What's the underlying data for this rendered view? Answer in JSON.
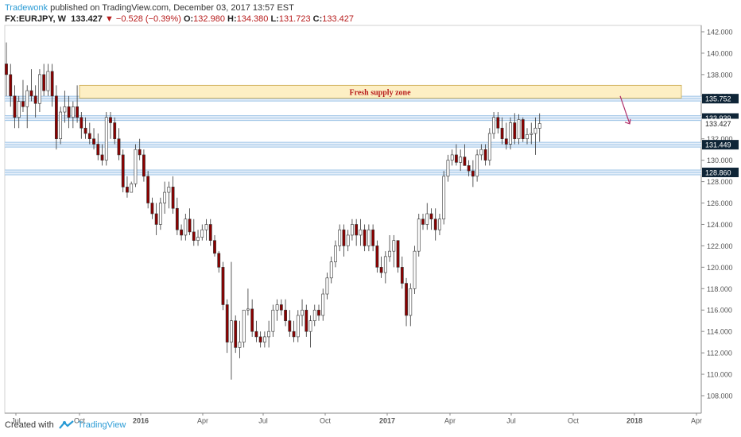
{
  "header": {
    "author": "Tradewonk",
    "published_text": "published on TradingView.com, December 03, 2017 13:57 EST",
    "symbol": "FX:EURJPY, W",
    "last": "133.427",
    "change": "−0.528 (−0.39%)",
    "open_label": "O:",
    "open": "132.980",
    "high_label": "H:",
    "high": "134.380",
    "low_label": "L:",
    "low": "131.723",
    "close_label": "C:",
    "close": "133.427"
  },
  "footer": {
    "created_with": "Created with",
    "brand": "TradingView"
  },
  "colors": {
    "up_fill": "#ffffff",
    "down_fill": "#8b0000",
    "candle_border": "#333333",
    "level_line": "#9cc3e6",
    "zone_fill": "#fdefc4",
    "zone_text": "#b71c1c",
    "label_bg": "#0f2537",
    "arrow": "#b0306a"
  },
  "chart_data": {
    "type": "candlestick",
    "title": "FX:EURJPY, W",
    "ylim": [
      107,
      143
    ],
    "y_ticks": [
      "142.000",
      "140.000",
      "138.000",
      "136.000",
      "134.000",
      "132.000",
      "130.000",
      "128.000",
      "126.000",
      "124.000",
      "122.000",
      "120.000",
      "118.000",
      "116.000",
      "114.000",
      "112.000",
      "110.000",
      "108.000"
    ],
    "x_ticks": [
      "Jul",
      "Oct",
      "2016",
      "Apr",
      "Jul",
      "Oct",
      "2017",
      "Apr",
      "Jul",
      "Oct",
      "2018",
      "Apr"
    ],
    "levels": [
      {
        "value": 135.752,
        "label": "135.752"
      },
      {
        "value": 133.939,
        "label": "133.939"
      },
      {
        "value": 131.449,
        "label": "131.449"
      },
      {
        "value": 128.86,
        "label": "128.860"
      }
    ],
    "current_price": "133.427",
    "zone": {
      "label": "Fresh supply zone",
      "low": 135.8,
      "high": 137.0
    },
    "candles": [
      [
        139,
        141,
        136,
        138
      ],
      [
        138,
        139,
        135,
        136
      ],
      [
        136,
        137,
        133,
        134
      ],
      [
        134,
        136,
        133,
        135.5
      ],
      [
        135.5,
        137.5,
        134.5,
        135
      ],
      [
        135,
        137,
        133,
        136.5
      ],
      [
        136.5,
        138.5,
        135.5,
        136
      ],
      [
        136,
        137,
        134,
        135.3
      ],
      [
        135.3,
        138.5,
        134.5,
        138
      ],
      [
        138,
        139,
        136,
        136.5
      ],
      [
        136.5,
        139,
        136,
        138.3
      ],
      [
        138.3,
        139,
        135,
        136
      ],
      [
        136,
        137,
        131,
        132
      ],
      [
        132,
        135,
        131.5,
        134.5
      ],
      [
        134.5,
        136.5,
        133.5,
        135
      ],
      [
        135,
        136,
        133,
        134
      ],
      [
        134,
        135.5,
        133,
        135
      ],
      [
        135,
        137,
        133.5,
        134
      ],
      [
        134,
        134.5,
        132,
        133
      ],
      [
        133,
        134,
        132,
        132.5
      ],
      [
        132.5,
        133.5,
        131.5,
        132
      ],
      [
        132,
        133,
        131,
        131.5
      ],
      [
        131.5,
        132.5,
        130,
        130.5
      ],
      [
        130.5,
        131.5,
        129.5,
        130
      ],
      [
        130,
        134.5,
        129.5,
        134
      ],
      [
        134,
        134.5,
        132,
        133.5
      ],
      [
        133.5,
        134,
        131.5,
        132
      ],
      [
        132,
        133,
        130,
        130.5
      ],
      [
        130.5,
        131,
        127,
        127.5
      ],
      [
        127.5,
        128.5,
        126.5,
        127
      ],
      [
        127,
        128,
        127,
        127.8
      ],
      [
        127.8,
        131.5,
        127.5,
        131
      ],
      [
        131,
        132,
        130,
        130.5
      ],
      [
        130.5,
        131,
        128,
        128.5
      ],
      [
        128.5,
        129,
        125.5,
        126
      ],
      [
        126,
        126.5,
        124.5,
        125
      ],
      [
        125,
        126,
        123,
        124
      ],
      [
        124,
        126.5,
        123.5,
        126
      ],
      [
        126,
        128,
        125,
        127
      ],
      [
        127,
        128,
        125.5,
        127.5
      ],
      [
        127.5,
        128.5,
        125,
        125.5
      ],
      [
        125.5,
        126.5,
        123,
        123.5
      ],
      [
        123.5,
        124,
        122.5,
        123
      ],
      [
        123,
        125,
        122.5,
        124.5
      ],
      [
        124.5,
        125.5,
        123,
        123.3
      ],
      [
        123.3,
        124.5,
        122,
        122.5
      ],
      [
        122.5,
        123.5,
        122,
        122.8
      ],
      [
        122.8,
        124,
        122.5,
        123.5
      ],
      [
        123.5,
        124.5,
        122.5,
        124
      ],
      [
        124,
        124.5,
        122,
        122.5
      ],
      [
        122.5,
        123,
        121,
        121.3
      ],
      [
        121.3,
        121.5,
        119.5,
        120
      ],
      [
        120,
        120.5,
        116,
        116.5
      ],
      [
        116.5,
        117,
        112,
        113
      ],
      [
        113,
        120.5,
        109.5,
        115
      ],
      [
        115,
        115.5,
        112,
        112.5
      ],
      [
        112.5,
        115,
        111.5,
        113
      ],
      [
        113,
        116,
        112.5,
        116
      ],
      [
        116,
        118,
        115.5,
        116.1
      ],
      [
        116.1,
        117,
        113.5,
        114
      ],
      [
        114,
        115,
        113,
        113.5
      ],
      [
        113.5,
        114,
        112.5,
        113
      ],
      [
        113,
        114,
        112.5,
        113.5
      ],
      [
        113.5,
        115,
        112.5,
        114
      ],
      [
        114,
        116.5,
        113.5,
        116
      ],
      [
        116,
        117,
        115,
        116.5
      ],
      [
        116.5,
        117,
        115.5,
        116
      ],
      [
        116,
        117,
        114.5,
        115
      ],
      [
        115,
        116,
        113.5,
        114
      ],
      [
        114,
        115,
        113,
        113.5
      ],
      [
        113.5,
        116,
        113,
        115.5
      ],
      [
        115.5,
        117,
        114.5,
        116
      ],
      [
        116,
        116.5,
        113.5,
        114
      ],
      [
        114,
        115.5,
        112.5,
        115
      ],
      [
        115,
        116.5,
        114.5,
        116
      ],
      [
        116,
        116.5,
        115,
        115.5
      ],
      [
        115.5,
        118,
        115,
        117.5
      ],
      [
        117.5,
        119.5,
        117,
        119
      ],
      [
        119,
        121,
        118.5,
        120.5
      ],
      [
        120.5,
        122.5,
        120,
        122
      ],
      [
        122,
        124,
        121.5,
        123.5
      ],
      [
        123.5,
        124,
        121,
        122
      ],
      [
        122,
        123.5,
        121.5,
        123
      ],
      [
        123,
        124.5,
        122.5,
        124
      ],
      [
        124,
        124.5,
        122,
        123
      ],
      [
        123,
        124.5,
        122,
        123.5
      ],
      [
        123.5,
        124,
        121.5,
        122
      ],
      [
        122,
        124,
        121.5,
        123.5
      ],
      [
        123.5,
        124,
        121.5,
        122
      ],
      [
        122,
        122.5,
        119.5,
        120
      ],
      [
        120,
        121,
        119,
        119.5
      ],
      [
        119.5,
        121.5,
        118.5,
        121
      ],
      [
        121,
        123,
        120.5,
        121.5
      ],
      [
        121.5,
        123,
        120,
        122.5
      ],
      [
        122.5,
        122.5,
        119.5,
        120
      ],
      [
        120,
        121,
        118,
        118.5
      ],
      [
        118.5,
        119,
        114.5,
        115.5
      ],
      [
        115.5,
        118.5,
        114.5,
        118
      ],
      [
        118,
        122,
        117.5,
        121.5
      ],
      [
        121.5,
        125,
        121,
        124.5
      ],
      [
        124.5,
        125,
        123.5,
        124
      ],
      [
        124,
        126,
        123.5,
        125
      ],
      [
        125,
        125.5,
        123.5,
        124.5
      ],
      [
        124.5,
        125.5,
        122.5,
        123.5
      ],
      [
        123.5,
        125,
        123,
        124.5
      ],
      [
        124.5,
        129,
        124,
        128.5
      ],
      [
        128.5,
        130.5,
        128,
        130
      ],
      [
        130,
        131,
        129.5,
        130.5
      ],
      [
        130.5,
        131.5,
        129.5,
        129.8
      ],
      [
        129.8,
        131,
        129,
        130.3
      ],
      [
        130.3,
        131.5,
        129.5,
        129.5
      ],
      [
        129.5,
        130,
        128.5,
        129
      ],
      [
        129,
        130,
        127.5,
        128.5
      ],
      [
        128.5,
        131,
        128,
        130.5
      ],
      [
        130.5,
        131.5,
        130,
        131
      ],
      [
        131,
        131.5,
        129.5,
        130
      ],
      [
        130,
        133,
        129.5,
        132.5
      ],
      [
        132.5,
        134.5,
        132,
        134
      ],
      [
        134,
        134.5,
        132.5,
        133
      ],
      [
        133,
        134,
        131.5,
        132
      ],
      [
        132,
        133.5,
        131,
        131.5
      ],
      [
        131.5,
        134,
        131,
        133.5
      ],
      [
        133.5,
        134.4,
        131.5,
        132
      ],
      [
        132,
        134.3,
        131.5,
        133.8
      ],
      [
        133.8,
        134,
        131.7,
        132
      ],
      [
        132,
        133,
        131.5,
        132.4
      ],
      [
        132.4,
        133.5,
        131.5,
        132.5
      ],
      [
        132.5,
        134,
        130.5,
        133
      ],
      [
        132.98,
        134.38,
        131.72,
        133.427
      ]
    ]
  }
}
